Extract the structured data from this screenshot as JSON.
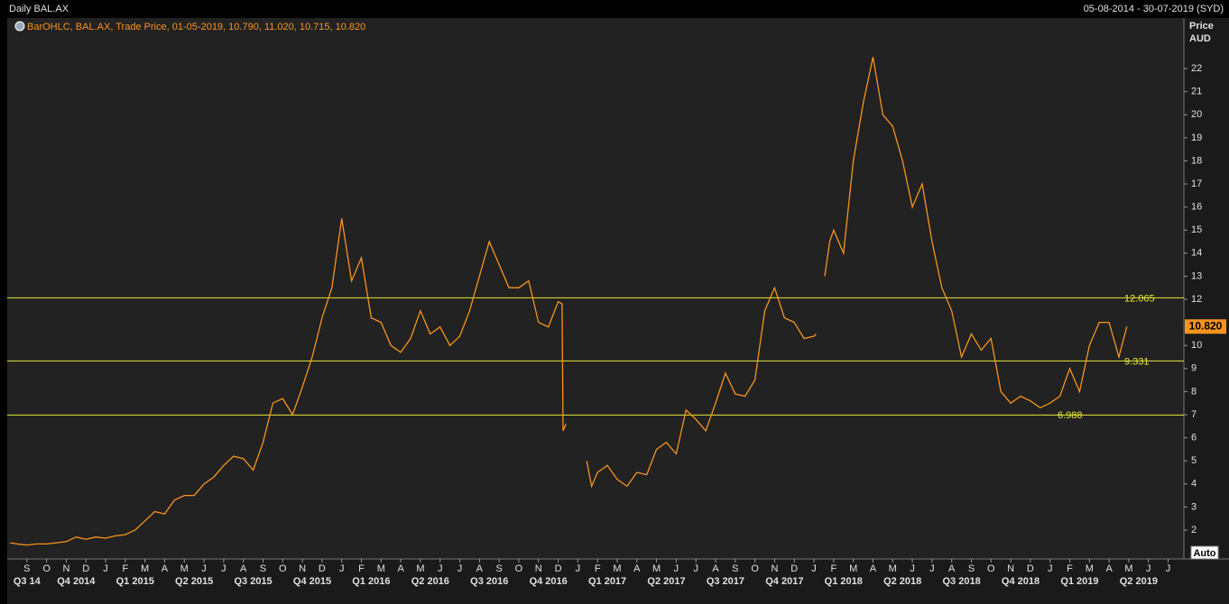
{
  "chart_data": {
    "type": "line",
    "title": "Daily BAL.AX",
    "date_range": "05-08-2014 - 30-07-2019 (SYD)",
    "legend": "BarOHLC, BAL.AX, Trade Price, 01-05-2019, 10.790, 11.020, 10.715, 10.820",
    "y_axis_label": "Price",
    "y_axis_unit": "AUD",
    "button": "Auto",
    "series": [
      {
        "color": "#f7941d",
        "x": [
          0.15,
          0.5,
          1,
          1.5,
          2,
          2.5,
          3,
          3.5,
          4,
          4.5,
          5,
          5.5,
          6,
          6.5,
          7,
          7.5,
          8,
          8.5,
          9,
          9.5,
          10,
          10.5,
          11,
          11.5,
          12,
          12.5,
          13,
          13.5,
          14,
          14.5,
          15,
          15.5,
          16,
          16.5,
          17,
          17.5,
          18,
          18.5,
          19,
          19.5,
          20,
          20.5,
          21,
          21.5,
          22,
          22.5,
          23,
          23.5,
          24,
          24.5,
          25,
          25.5,
          26,
          26.5,
          27,
          27.5,
          28,
          28.2,
          28.25,
          28.4,
          28.9,
          29.45,
          29.7,
          30,
          30.5,
          31,
          31.5,
          32,
          32.5,
          33,
          33.5,
          34,
          34.5,
          35,
          35.5,
          36,
          36.5,
          37,
          37.5,
          38,
          38.5,
          39,
          39.5,
          40,
          40.5,
          41,
          41.1,
          41.3,
          41.55,
          41.8,
          42,
          42.5,
          43,
          43.5,
          44,
          44.5,
          45,
          45.5,
          46,
          46.5,
          47,
          47.5,
          48,
          48.5,
          49,
          49.5,
          50,
          50.5,
          51,
          51.5,
          52,
          52.5,
          53,
          53.5,
          54,
          54.5,
          55,
          55.5,
          56,
          56.5,
          56.9
        ],
        "values": [
          1.45,
          1.4,
          1.35,
          1.4,
          1.4,
          1.45,
          1.5,
          1.7,
          1.6,
          1.7,
          1.65,
          1.75,
          1.8,
          2.0,
          2.4,
          2.8,
          2.7,
          3.3,
          3.5,
          3.5,
          4.0,
          4.3,
          4.8,
          5.2,
          5.1,
          4.6,
          5.8,
          7.5,
          7.7,
          7.0,
          8.2,
          9.5,
          11.2,
          12.5,
          15.5,
          12.8,
          13.8,
          11.2,
          11.0,
          10.0,
          9.7,
          10.3,
          11.5,
          10.5,
          10.8,
          10.0,
          10.4,
          11.5,
          13.0,
          14.5,
          13.5,
          12.5,
          12.5,
          12.8,
          11.0,
          10.8,
          11.9,
          11.8,
          6.3,
          6.6,
          null,
          5.0,
          3.9,
          4.5,
          4.8,
          4.2,
          3.9,
          4.5,
          4.4,
          5.5,
          5.8,
          5.3,
          7.2,
          6.8,
          6.3,
          7.5,
          8.8,
          7.9,
          7.8,
          8.5,
          11.5,
          12.5,
          11.2,
          11.0,
          10.3,
          10.4,
          10.5,
          null,
          13.0,
          14.5,
          15.0,
          14.0,
          18.0,
          20.5,
          22.5,
          20.0,
          19.5,
          18.0,
          16.0,
          17.0,
          14.5,
          12.5,
          11.5,
          9.5,
          10.5,
          9.8,
          10.3,
          8.0,
          7.5,
          7.8,
          7.6,
          7.3,
          7.5,
          7.8,
          9.0,
          8.0,
          10.0,
          11.0,
          11.0,
          9.5,
          10.82
        ]
      }
    ],
    "last_value": {
      "value": 10.82,
      "label": "10.820"
    },
    "hlines": [
      12.065,
      9.331,
      6.988
    ],
    "hline_color": "#e8e83a",
    "ylim": [
      0.75,
      24.19
    ],
    "yticks": [
      2,
      3,
      4,
      5,
      6,
      7,
      8,
      9,
      10,
      12,
      13,
      14,
      15,
      16,
      17,
      18,
      19,
      20,
      21,
      22
    ],
    "xlim": [
      0,
      59.8
    ],
    "xticks": [
      {
        "value": 1,
        "label": "S"
      },
      {
        "value": 2,
        "label": "O"
      },
      {
        "value": 3,
        "label": "N"
      },
      {
        "value": 4,
        "label": "D"
      },
      {
        "value": 5,
        "label": "J"
      },
      {
        "value": 6,
        "label": "F"
      },
      {
        "value": 7,
        "label": "M"
      },
      {
        "value": 8,
        "label": "A"
      },
      {
        "value": 9,
        "label": "M"
      },
      {
        "value": 10,
        "label": "J"
      },
      {
        "value": 11,
        "label": "J"
      },
      {
        "value": 12,
        "label": "A"
      },
      {
        "value": 13,
        "label": "S"
      },
      {
        "value": 14,
        "label": "O"
      },
      {
        "value": 15,
        "label": "N"
      },
      {
        "value": 16,
        "label": "D"
      },
      {
        "value": 17,
        "label": "J"
      },
      {
        "value": 18,
        "label": "F"
      },
      {
        "value": 19,
        "label": "M"
      },
      {
        "value": 20,
        "label": "A"
      },
      {
        "value": 21,
        "label": "M"
      },
      {
        "value": 22,
        "label": "J"
      },
      {
        "value": 23,
        "label": "J"
      },
      {
        "value": 24,
        "label": "A"
      },
      {
        "value": 25,
        "label": "S"
      },
      {
        "value": 26,
        "label": "O"
      },
      {
        "value": 27,
        "label": "N"
      },
      {
        "value": 28,
        "label": "D"
      },
      {
        "value": 29,
        "label": "J"
      },
      {
        "value": 30,
        "label": "F"
      },
      {
        "value": 31,
        "label": "M"
      },
      {
        "value": 32,
        "label": "A"
      },
      {
        "value": 33,
        "label": "M"
      },
      {
        "value": 34,
        "label": "J"
      },
      {
        "value": 35,
        "label": "J"
      },
      {
        "value": 36,
        "label": "A"
      },
      {
        "value": 37,
        "label": "S"
      },
      {
        "value": 38,
        "label": "O"
      },
      {
        "value": 39,
        "label": "N"
      },
      {
        "value": 40,
        "label": "D"
      },
      {
        "value": 41,
        "label": "J"
      },
      {
        "value": 42,
        "label": "F"
      },
      {
        "value": 43,
        "label": "M"
      },
      {
        "value": 44,
        "label": "A"
      },
      {
        "value": 45,
        "label": "M"
      },
      {
        "value": 46,
        "label": "J"
      },
      {
        "value": 47,
        "label": "J"
      },
      {
        "value": 48,
        "label": "A"
      },
      {
        "value": 49,
        "label": "S"
      },
      {
        "value": 50,
        "label": "O"
      },
      {
        "value": 51,
        "label": "N"
      },
      {
        "value": 52,
        "label": "D"
      },
      {
        "value": 53,
        "label": "J"
      },
      {
        "value": 54,
        "label": "F"
      },
      {
        "value": 55,
        "label": "M"
      },
      {
        "value": 56,
        "label": "A"
      },
      {
        "value": 57,
        "label": "M"
      },
      {
        "value": 58,
        "label": "J"
      },
      {
        "value": 59,
        "label": "J"
      }
    ],
    "quarters": [
      {
        "value": 1,
        "label": "Q3 14"
      },
      {
        "value": 3.5,
        "label": "Q4 2014"
      },
      {
        "value": 6.5,
        "label": "Q1 2015"
      },
      {
        "value": 9.5,
        "label": "Q2 2015"
      },
      {
        "value": 12.5,
        "label": "Q3 2015"
      },
      {
        "value": 15.5,
        "label": "Q4 2015"
      },
      {
        "value": 18.5,
        "label": "Q1 2016"
      },
      {
        "value": 21.5,
        "label": "Q2 2016"
      },
      {
        "value": 24.5,
        "label": "Q3 2016"
      },
      {
        "value": 27.5,
        "label": "Q4 2016"
      },
      {
        "value": 30.5,
        "label": "Q1 2017"
      },
      {
        "value": 33.5,
        "label": "Q2 2017"
      },
      {
        "value": 36.5,
        "label": "Q3 2017"
      },
      {
        "value": 39.5,
        "label": "Q4 2017"
      },
      {
        "value": 42.5,
        "label": "Q1 2018"
      },
      {
        "value": 45.5,
        "label": "Q2 2018"
      },
      {
        "value": 48.5,
        "label": "Q3 2018"
      },
      {
        "value": 51.5,
        "label": "Q4 2018"
      },
      {
        "value": 54.5,
        "label": "Q1 2019"
      },
      {
        "value": 57.5,
        "label": "Q2 2019"
      }
    ]
  }
}
